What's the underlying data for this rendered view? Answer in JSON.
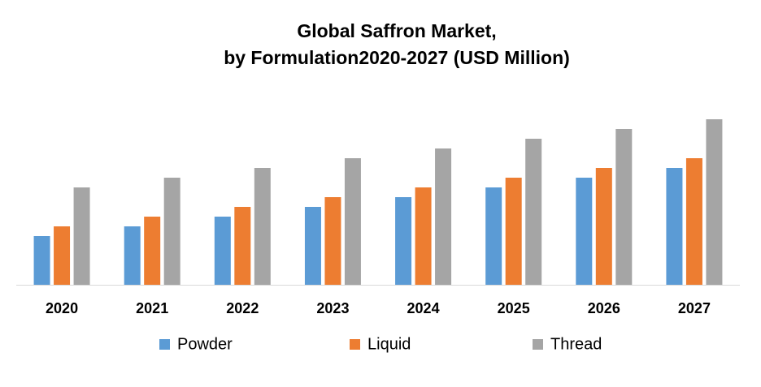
{
  "chart_data": {
    "type": "bar",
    "title": "Global Saffron Market,",
    "subtitle": "by Formulation2020-2027 (USD Million)",
    "categories": [
      "2020",
      "2021",
      "2022",
      "2023",
      "2024",
      "2025",
      "2026",
      "2027"
    ],
    "series": [
      {
        "name": "Powder",
        "color": "#5b9bd5",
        "values": [
          5,
          6,
          7,
          8,
          9,
          10,
          11,
          12
        ]
      },
      {
        "name": "Liquid",
        "color": "#ed7d31",
        "values": [
          6,
          7,
          8,
          9,
          10,
          11,
          12,
          13
        ]
      },
      {
        "name": "Thread",
        "color": "#a5a5a5",
        "values": [
          10,
          11,
          12,
          13,
          14,
          15,
          16,
          17
        ]
      }
    ],
    "ylim": [
      0,
      17
    ],
    "legend": "bottom"
  }
}
